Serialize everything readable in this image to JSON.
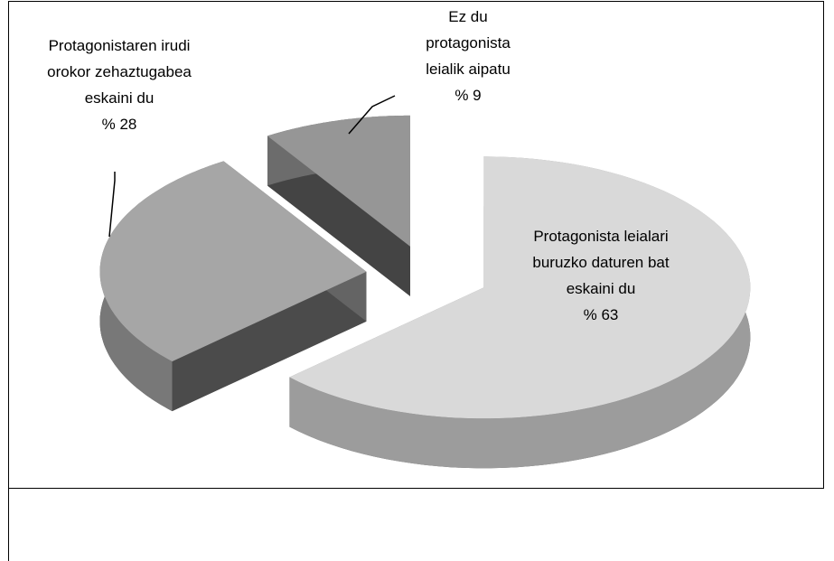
{
  "chart_data": {
    "type": "pie3d",
    "categories": [
      "Protagonista leialari buruzko daturen bat eskaini du",
      "Protagonistaren irudi orokor zehaztugabea eskaini du",
      "Ez du protagonista leialik aipatu"
    ],
    "values": [
      63,
      28,
      9
    ],
    "value_labels": [
      "% 63",
      "% 28",
      "% 9"
    ],
    "colors": [
      "#d9d9d9",
      "#a6a6a6",
      "#969696"
    ]
  }
}
